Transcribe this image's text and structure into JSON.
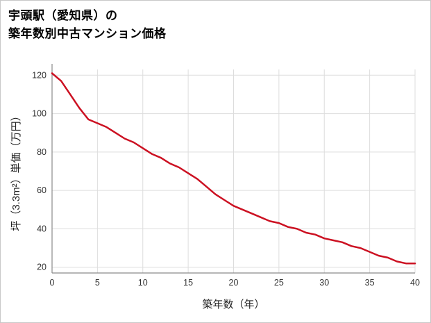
{
  "header": {
    "title_line1": "宇頭駅（愛知県）の",
    "title_line2": "築年数別中古マンション価格"
  },
  "colors": {
    "line": "#cc1122",
    "grid": "#dddddd",
    "axis": "#8a8a8a",
    "tick_text": "#333333"
  },
  "chart_data": {
    "type": "line",
    "title": "宇頭駅（愛知県）の築年数別中古マンション価格",
    "xlabel": "築年数（年）",
    "ylabel": "坪（3.3m²）単価（万円）",
    "x": [
      0,
      1,
      2,
      3,
      4,
      5,
      6,
      7,
      8,
      9,
      10,
      11,
      12,
      13,
      14,
      15,
      16,
      17,
      18,
      19,
      20,
      21,
      22,
      23,
      24,
      25,
      26,
      27,
      28,
      29,
      30,
      31,
      32,
      33,
      34,
      35,
      36,
      37,
      38,
      39,
      40
    ],
    "y": [
      121,
      117,
      110,
      103,
      97,
      95,
      93,
      90,
      87,
      85,
      82,
      79,
      77,
      74,
      72,
      69,
      66,
      62,
      58,
      55,
      52,
      50,
      48,
      46,
      44,
      43,
      41,
      40,
      38,
      37,
      35,
      34,
      33,
      31,
      30,
      28,
      26,
      25,
      23,
      22,
      22
    ],
    "xlim": [
      0,
      40
    ],
    "ylim": [
      17,
      123
    ],
    "xticks": [
      0,
      5,
      10,
      15,
      20,
      25,
      30,
      35,
      40
    ],
    "yticks": [
      20,
      40,
      60,
      80,
      100,
      120
    ],
    "grid": true,
    "legend": "none",
    "line_width": 2.5
  }
}
